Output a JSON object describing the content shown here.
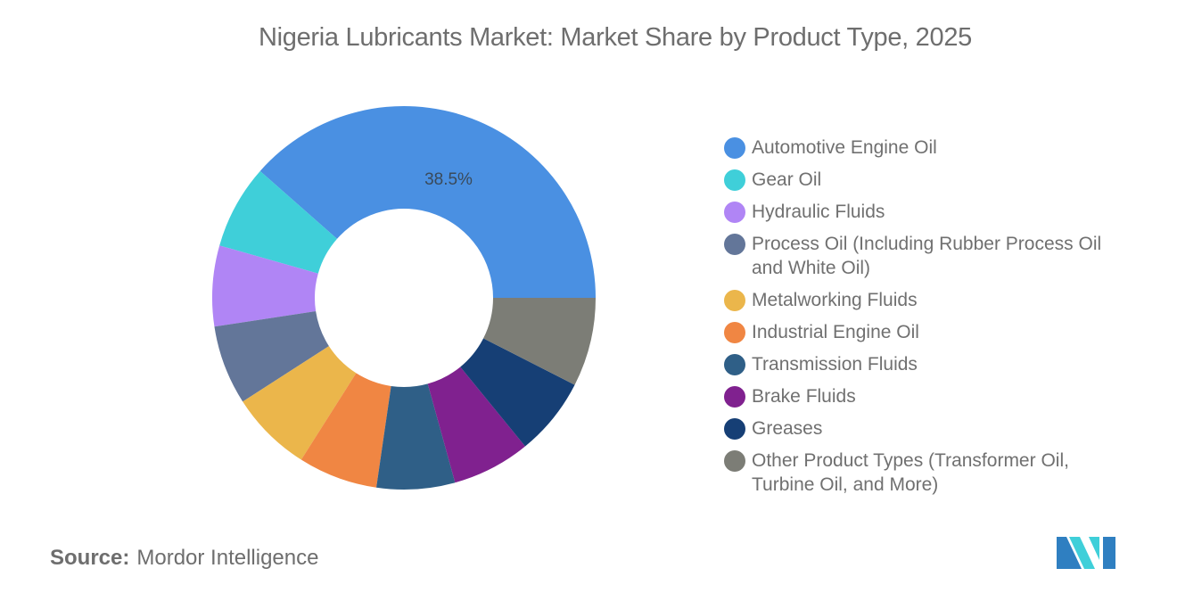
{
  "title": "Nigeria Lubricants Market: Market Share by Product Type, 2025",
  "source": {
    "label": "Source:",
    "value": "Mordor Intelligence"
  },
  "chart_data": {
    "type": "pie",
    "variant": "donut",
    "title": "Nigeria Lubricants Market: Market Share by Product Type, 2025",
    "legend_position": "right",
    "start_angle_deg": 0,
    "direction": "counterclockwise",
    "categories": [
      "Automotive Engine Oil",
      "Gear Oil",
      "Hydraulic Fluids",
      "Process Oil (Including Rubber Process Oil and White Oil)",
      "Metalworking Fluids",
      "Industrial Engine Oil",
      "Transmission Fluids",
      "Brake Fluids",
      "Greases",
      "Other Product Types (Transformer Oil, Turbine Oil, and More)"
    ],
    "values": [
      38.5,
      7.1,
      6.8,
      6.7,
      6.9,
      6.7,
      6.6,
      6.6,
      6.6,
      7.5
    ],
    "colors": [
      "#4a90e2",
      "#3fcfd9",
      "#b085f5",
      "#637699",
      "#ebb64b",
      "#f08643",
      "#2f5f87",
      "#80218f",
      "#163f75",
      "#7c7d76"
    ],
    "data_labels": [
      {
        "category": "Automotive Engine Oil",
        "text": "38.5%"
      }
    ],
    "unit": "%"
  },
  "legend": {
    "items": [
      {
        "label": "Automotive Engine Oil",
        "color": "#4a90e2"
      },
      {
        "label": "Gear Oil",
        "color": "#3fcfd9"
      },
      {
        "label": "Hydraulic Fluids",
        "color": "#b085f5"
      },
      {
        "label": "Process Oil (Including Rubber Process Oil and White Oil)",
        "color": "#637699"
      },
      {
        "label": "Metalworking Fluids",
        "color": "#ebb64b"
      },
      {
        "label": "Industrial Engine Oil",
        "color": "#f08643"
      },
      {
        "label": "Transmission Fluids",
        "color": "#2f5f87"
      },
      {
        "label": "Brake Fluids",
        "color": "#80218f"
      },
      {
        "label": "Greases",
        "color": "#163f75"
      },
      {
        "label": "Other Product Types (Transformer Oil, Turbine Oil, and More)",
        "color": "#7c7d76"
      }
    ]
  },
  "logo": {
    "icon": "mordor-intelligence-logo-icon",
    "colors": [
      "#2f7fc1",
      "#3fcfd9"
    ]
  }
}
